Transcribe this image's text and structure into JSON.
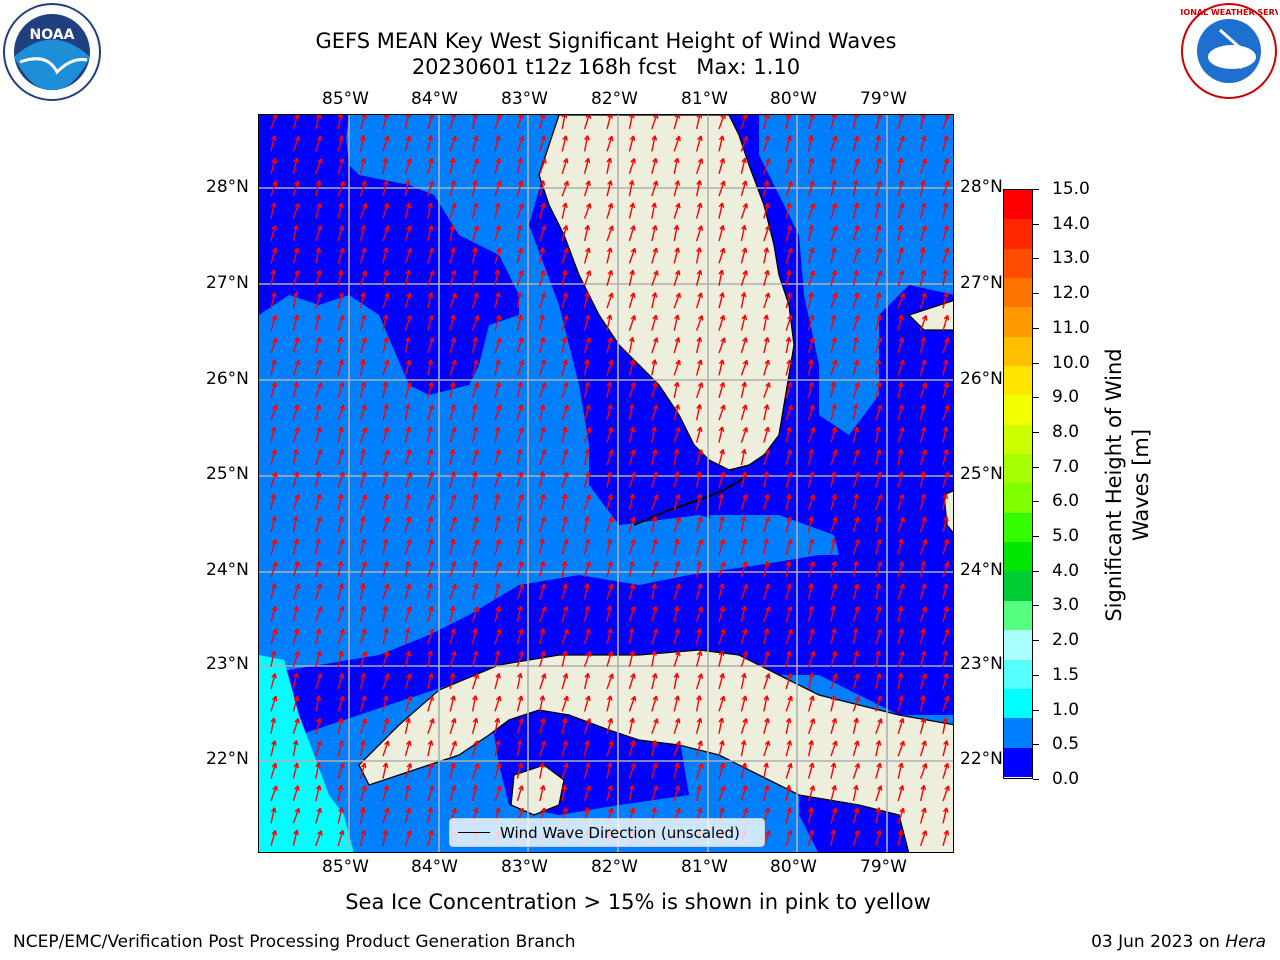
{
  "header": {
    "title_line1": "GEFS MEAN Key West Significant Height of Wind Waves",
    "title_line2": "20230601 t12z 168h fcst   Max: 1.10"
  },
  "map": {
    "lon_labels": [
      "85°W",
      "84°W",
      "83°W",
      "82°W",
      "81°W",
      "80°W",
      "79°W"
    ],
    "lat_labels": [
      "28°N",
      "27°N",
      "26°N",
      "25°N",
      "24°N",
      "23°N",
      "22°N"
    ],
    "colors": {
      "ocean_0_05": "#0000ff",
      "ocean_05_10": "#0080ff",
      "ocean_15_20": "#00ffff",
      "land": "#eeeedd",
      "gridline": "#b0b0b0",
      "arrow": "#ff0000"
    },
    "legend_text": "Wind Wave Direction (unscaled)"
  },
  "colorbar": {
    "label": "Significant Height of Wind Waves [m]",
    "ticks": [
      "15.0",
      "14.0",
      "13.0",
      "12.0",
      "11.0",
      "10.0",
      "9.0",
      "8.0",
      "7.0",
      "6.0",
      "5.0",
      "4.0",
      "3.0",
      "2.0",
      "1.5",
      "1.0",
      "0.5",
      "0.0"
    ],
    "colors_top_to_bottom": [
      "#ff0000",
      "#ff2600",
      "#ff4d00",
      "#ff7300",
      "#ff9900",
      "#ffbf00",
      "#ffe500",
      "#f2ff00",
      "#ccff00",
      "#a6ff00",
      "#80ff00",
      "#33ff00",
      "#00e600",
      "#00cc33",
      "#55ff7f",
      "#aaffff",
      "#55ffff",
      "#00ffff",
      "#0080ff",
      "#0000ff"
    ]
  },
  "captions": {
    "sea_ice": "Sea Ice Concentration > 15% is shown in pink to yellow",
    "branch": "NCEP/EMC/Verification Post Processing Product Generation Branch",
    "date": "03 Jun 2023 on ",
    "machine": "Hera"
  },
  "logos": {
    "left": "NOAA",
    "right": "NATIONAL WEATHER SERVICE"
  }
}
